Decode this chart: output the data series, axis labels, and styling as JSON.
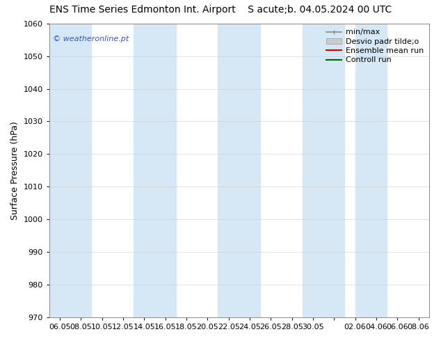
{
  "title": "ENS Time Series Edmonton Int. Airport",
  "title2": "S acute;b. 04.05.2024 00 UTC",
  "ylabel": "Surface Pressure (hPa)",
  "ylim": [
    970,
    1060
  ],
  "yticks": [
    970,
    980,
    990,
    1000,
    1010,
    1020,
    1030,
    1040,
    1050,
    1060
  ],
  "xtick_labels": [
    "06.05",
    "08.05",
    "10.05",
    "12.05",
    "14.05",
    "16.05",
    "18.05",
    "20.05",
    "22.05",
    "24.05",
    "26.05",
    "28.05",
    "30.05",
    "",
    "02.06",
    "04.06",
    "06.06",
    "08.06"
  ],
  "bg_color": "#ffffff",
  "plot_bg_color": "#ffffff",
  "band_color": "#d6e8f5",
  "band_positions": [
    0,
    2,
    5,
    7,
    10,
    14
  ],
  "band_widths": [
    1.5,
    1.5,
    1.5,
    1.5,
    1.5,
    1.5
  ],
  "watermark": "© weatheronline.pt",
  "watermark_color": "#3355bb",
  "legend_labels": [
    "min/max",
    "Desvio padr tilde;o",
    "Ensemble mean run",
    "Controll run"
  ],
  "legend_line_colors": [
    "#888888",
    "#cccccc",
    "#dd0000",
    "#006600"
  ],
  "title_fontsize": 10,
  "axis_label_fontsize": 9,
  "tick_fontsize": 8,
  "legend_fontsize": 8
}
